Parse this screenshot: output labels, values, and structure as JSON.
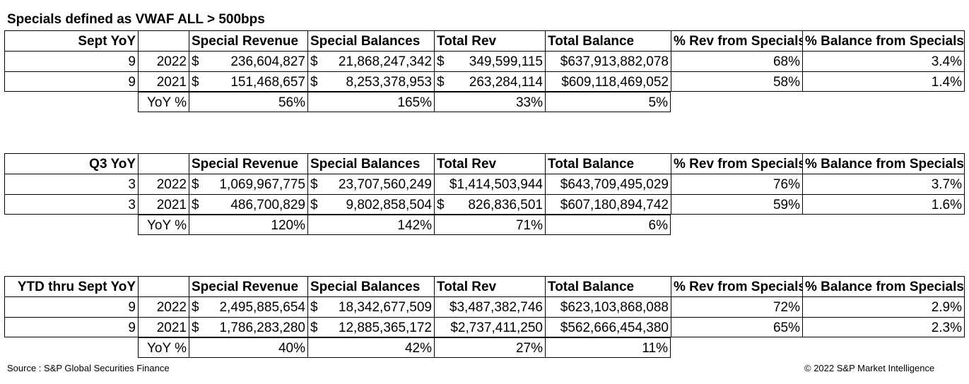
{
  "title": "Specials defined as VWAF ALL > 500bps",
  "columns": [
    "Special Revenue",
    "Special Balances",
    "Total Rev",
    "Total Balance",
    "% Rev from Specials",
    "% Balance from Specials"
  ],
  "blocks": [
    {
      "label": "Sept YoY",
      "rows": [
        {
          "period": "9",
          "year": "2022",
          "special_revenue": "236,604,827",
          "special_balances": "21,868,247,342",
          "total_rev": "349,599,115",
          "total_balance": "$637,913,882,078",
          "pct_rev": "68%",
          "pct_balance": "3.4%"
        },
        {
          "period": "9",
          "year": "2021",
          "special_revenue": "151,468,657",
          "special_balances": "8,253,378,953",
          "total_rev": "263,284,114",
          "total_balance": "$609,118,469,052",
          "pct_rev": "58%",
          "pct_balance": "1.4%"
        }
      ],
      "yoy": {
        "label": "YoY %",
        "special_revenue": "56%",
        "special_balances": "165%",
        "total_rev": "33%",
        "total_balance": "5%"
      }
    },
    {
      "label": "Q3 YoY",
      "rows": [
        {
          "period": "3",
          "year": "2022",
          "special_revenue": "1,069,967,775",
          "special_balances": "23,707,560,249",
          "total_rev": "$1,414,503,944",
          "total_balance": "$643,709,495,029",
          "pct_rev": "76%",
          "pct_balance": "3.7%"
        },
        {
          "period": "3",
          "year": "2021",
          "special_revenue": "486,700,829",
          "special_balances": "9,802,858,504",
          "total_rev": "826,836,501",
          "total_balance": "$607,180,894,742",
          "pct_rev": "59%",
          "pct_balance": "1.6%"
        }
      ],
      "yoy": {
        "label": "YoY %",
        "special_revenue": "120%",
        "special_balances": "142%",
        "total_rev": "71%",
        "total_balance": "6%"
      }
    },
    {
      "label": "YTD thru Sept YoY",
      "rows": [
        {
          "period": "9",
          "year": "2022",
          "special_revenue": "2,495,885,654",
          "special_balances": "18,342,677,509",
          "total_rev": "$3,487,382,746",
          "total_balance": "$623,103,868,088",
          "pct_rev": "72%",
          "pct_balance": "2.9%"
        },
        {
          "period": "9",
          "year": "2021",
          "special_revenue": "1,786,283,280",
          "special_balances": "12,885,365,172",
          "total_rev": "$2,737,411,250",
          "total_balance": "$562,666,454,380",
          "pct_rev": "65%",
          "pct_balance": "2.3%"
        }
      ],
      "yoy": {
        "label": "YoY %",
        "special_revenue": "40%",
        "special_balances": "42%",
        "total_rev": "27%",
        "total_balance": "11%"
      }
    }
  ],
  "currency_symbol": "$",
  "footer": {
    "source": "Source : S&P Global Securities Finance",
    "copyright": "© 2022 S&P Market Intelligence"
  }
}
